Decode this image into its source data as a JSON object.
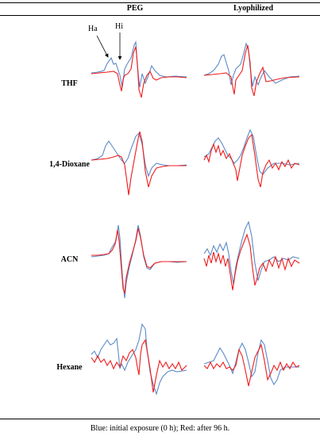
{
  "figure": {
    "columns": [
      "PEG",
      "Lyophilized"
    ],
    "rows": [
      "THF",
      "1,4-Dioxane",
      "ACN",
      "Hexane"
    ],
    "annotations": [
      "Ha",
      "Hi"
    ],
    "caption": "Blue: initial exposure (0 h); Red: after 96 h.",
    "colors": {
      "initial": "#5b8ac8",
      "after96": "#ee1c1c"
    }
  }
}
